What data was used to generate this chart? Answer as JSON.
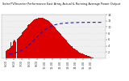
{
  "title": "Solar PV/Inverter Performance East Array Actual & Running Average Power Output",
  "bg_color": "#ffffff",
  "plot_bg_color": "#ffffff",
  "grid_color": "#ffffff",
  "bar_color": "#dd0000",
  "line_color": "#0000cc",
  "n_bars": 130,
  "ylim": [
    0,
    14
  ],
  "yticks": [
    2,
    4,
    6,
    8,
    10,
    12,
    14
  ],
  "figsize": [
    1.6,
    1.0
  ],
  "dpi": 100,
  "title_fontsize": 2.5,
  "tick_fontsize": 2.5
}
